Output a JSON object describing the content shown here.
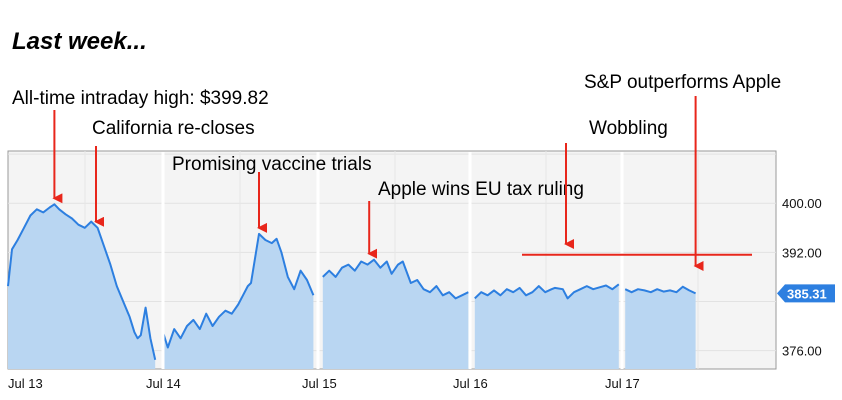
{
  "heading": "Last week...",
  "chart_data": {
    "type": "area",
    "title": "",
    "xlabel": "",
    "ylabel": "",
    "x_tick_labels": [
      "Jul 13",
      "Jul 14",
      "Jul 15",
      "Jul 16",
      "Jul 17"
    ],
    "y_ticks": [
      376.0,
      392.0,
      400.0
    ],
    "y_tick_labels": [
      "376.00",
      "392.00",
      "400.00"
    ],
    "ylim": [
      373,
      408.5
    ],
    "grid": true,
    "last_price_label": "385.31",
    "colors": {
      "line": "#2d7fe0",
      "fill": "#b9d6f2",
      "background": "#f4f4f4",
      "badge": "#2d7fe0",
      "annotation": "#e8261b"
    },
    "series": [
      {
        "values": [
          [
            0.0,
            386.5
          ],
          [
            0.05,
            392.5
          ],
          [
            0.12,
            394.0
          ],
          [
            0.2,
            396.0
          ],
          [
            0.28,
            398.0
          ],
          [
            0.36,
            399.0
          ],
          [
            0.44,
            398.5
          ],
          [
            0.52,
            399.3
          ],
          [
            0.58,
            399.82
          ],
          [
            0.64,
            399.0
          ],
          [
            0.72,
            398.2
          ],
          [
            0.8,
            397.5
          ],
          [
            0.88,
            396.5
          ],
          [
            0.96,
            396.0
          ],
          [
            1.04,
            397.0
          ],
          [
            1.12,
            396.0
          ],
          [
            1.2,
            393.0
          ],
          [
            1.28,
            390.0
          ],
          [
            1.36,
            386.5
          ],
          [
            1.44,
            384.0
          ],
          [
            1.52,
            381.5
          ],
          [
            1.58,
            379.0
          ],
          [
            1.62,
            378.0
          ],
          [
            1.66,
            378.5
          ],
          [
            1.72,
            383.0
          ],
          [
            1.78,
            378.0
          ],
          [
            1.84,
            374.5
          ],
          [
            1.9,
            379.0
          ],
          [
            1.96,
            376.5
          ],
          [
            2.04,
            379.5
          ],
          [
            2.12,
            378.0
          ],
          [
            2.2,
            380.0
          ],
          [
            2.28,
            381.0
          ],
          [
            2.36,
            379.5
          ],
          [
            2.44,
            382.0
          ],
          [
            2.52,
            380.0
          ],
          [
            2.6,
            381.5
          ],
          [
            2.68,
            382.5
          ],
          [
            2.76,
            382.0
          ],
          [
            2.84,
            383.5
          ],
          [
            2.9,
            385.0
          ],
          [
            2.96,
            386.5
          ],
          [
            3.0,
            387.0
          ],
          [
            3.1,
            395.0
          ],
          [
            3.18,
            394.0
          ],
          [
            3.26,
            393.5
          ],
          [
            3.32,
            394.2
          ],
          [
            3.38,
            392.0
          ],
          [
            3.46,
            388.0
          ],
          [
            3.54,
            386.0
          ],
          [
            3.62,
            389.0
          ],
          [
            3.7,
            387.5
          ],
          [
            3.78,
            385.0
          ],
          [
            3.86,
            388.0
          ],
          [
            3.94,
            389.0
          ],
          [
            4.02,
            388.0
          ],
          [
            4.1,
            389.5
          ],
          [
            4.18,
            390.0
          ],
          [
            4.26,
            389.0
          ],
          [
            4.34,
            390.5
          ],
          [
            4.42,
            390.0
          ],
          [
            4.5,
            390.8
          ],
          [
            4.58,
            389.5
          ],
          [
            4.66,
            390.5
          ],
          [
            4.72,
            388.5
          ],
          [
            4.8,
            390.0
          ],
          [
            4.86,
            390.5
          ],
          [
            4.96,
            387.0
          ],
          [
            5.04,
            387.5
          ],
          [
            5.12,
            386.0
          ],
          [
            5.2,
            385.5
          ],
          [
            5.28,
            386.5
          ],
          [
            5.36,
            385.0
          ],
          [
            5.44,
            385.5
          ],
          [
            5.52,
            384.5
          ],
          [
            5.6,
            385.0
          ],
          [
            5.68,
            385.5
          ],
          [
            5.76,
            384.5
          ],
          [
            5.84,
            385.5
          ],
          [
            5.92,
            385.0
          ],
          [
            6.0,
            385.8
          ],
          [
            6.08,
            385.0
          ],
          [
            6.16,
            386.0
          ],
          [
            6.24,
            385.5
          ],
          [
            6.32,
            386.2
          ],
          [
            6.4,
            385.0
          ],
          [
            6.48,
            385.5
          ],
          [
            6.56,
            386.5
          ],
          [
            6.64,
            385.5
          ],
          [
            6.72,
            386.0
          ],
          [
            6.76,
            386.2
          ],
          [
            6.86,
            386.0
          ],
          [
            6.92,
            384.5
          ],
          [
            7.0,
            385.5
          ],
          [
            7.08,
            386.0
          ],
          [
            7.16,
            386.5
          ],
          [
            7.24,
            386.0
          ],
          [
            7.32,
            386.3
          ],
          [
            7.4,
            386.6
          ],
          [
            7.48,
            386.0
          ],
          [
            7.56,
            386.8
          ],
          [
            7.64,
            386.0
          ],
          [
            7.72,
            385.5
          ],
          [
            7.8,
            386.0
          ],
          [
            7.88,
            385.8
          ],
          [
            7.96,
            385.5
          ],
          [
            8.04,
            386.0
          ],
          [
            8.12,
            385.6
          ],
          [
            8.2,
            385.8
          ],
          [
            8.28,
            385.5
          ],
          [
            8.36,
            386.4
          ],
          [
            8.44,
            385.8
          ],
          [
            8.52,
            385.31
          ]
        ]
      }
    ],
    "reference_line_value": 391.6,
    "annotations": [
      {
        "text": "All-time intraday high: $399.82",
        "arrow_x": 0.58,
        "arrow_value": 399.82
      },
      {
        "text": "California re-closes",
        "arrow_x": 1.1,
        "arrow_value": 396.0
      },
      {
        "text": "Promising vaccine trials",
        "arrow_x": 3.1,
        "arrow_value": 395.0
      },
      {
        "text": "Apple wins EU tax ruling",
        "arrow_x": 4.44,
        "arrow_value": 390.8
      },
      {
        "text": "Wobbling",
        "arrow_x": 6.9,
        "arrow_value": 391.6
      },
      {
        "text": "S&P outperforms Apple",
        "arrow_x": 8.52,
        "arrow_value": 388.5
      }
    ]
  }
}
